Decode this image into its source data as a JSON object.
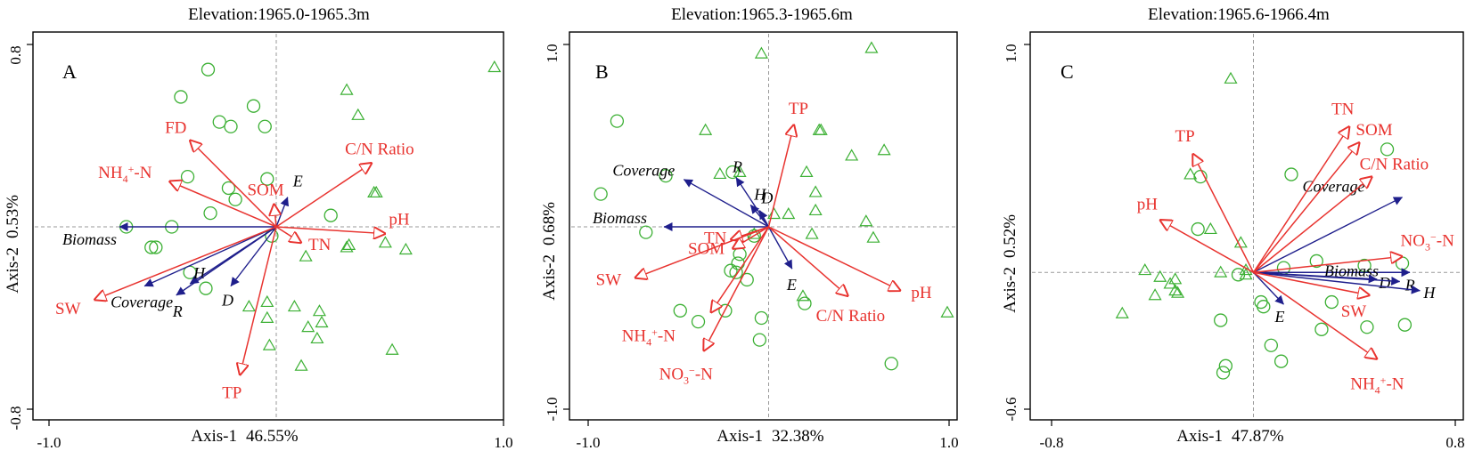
{
  "colors": {
    "env_arrow": "#e8332f",
    "veg_arrow": "#1f1f8c",
    "site_marker": "#3cb034"
  },
  "chart_data": [
    {
      "type": "biplot",
      "panel": "A",
      "title": "Elevation:1965.0-1965.3m",
      "xlabel_name": "Axis-1",
      "xlabel_pct": "46.55%",
      "ylabel_name": "Axis-2",
      "ylabel_pct": "0.53%",
      "xlim": [
        -1.0,
        1.0
      ],
      "ylim": [
        -0.8,
        0.8
      ],
      "xticks": [
        -1.0,
        1.0
      ],
      "yticks": [
        -0.8,
        0.8
      ],
      "xtick_labels": [
        "-1.0",
        "1.0"
      ],
      "ytick_labels": [
        "-0.8",
        "0.8"
      ],
      "env_arrows": [
        {
          "label": "FD",
          "x": -0.38,
          "y": 0.38
        },
        {
          "label": "NH4+-N",
          "parts": [
            {
              "t": "NH"
            },
            {
              "t": "4",
              "sup": false,
              "sub": true
            },
            {
              "t": "+",
              "sup": true
            },
            {
              "t": "-N"
            }
          ],
          "x": -0.47,
          "y": 0.2
        },
        {
          "label": "SOM",
          "x": -0.01,
          "y": 0.1
        },
        {
          "label": "C/N Ratio",
          "x": 0.42,
          "y": 0.28
        },
        {
          "label": "pH",
          "x": 0.48,
          "y": -0.03
        },
        {
          "label": "TN",
          "x": 0.11,
          "y": -0.07
        },
        {
          "label": "SW",
          "x": -0.8,
          "y": -0.32
        },
        {
          "label": "TP",
          "x": -0.16,
          "y": -0.65
        }
      ],
      "veg_arrows": [
        {
          "label": "Biomass",
          "x": -0.69,
          "y": 0.0
        },
        {
          "label": "E",
          "x": 0.05,
          "y": 0.13
        },
        {
          "label": "H",
          "x": -0.38,
          "y": -0.25
        },
        {
          "label": "Coverage",
          "x": -0.58,
          "y": -0.26
        },
        {
          "label": "R",
          "x": -0.44,
          "y": -0.3
        },
        {
          "label": "D",
          "x": -0.2,
          "y": -0.26
        }
      ],
      "circles": [
        [
          -0.3,
          0.69
        ],
        [
          -0.42,
          0.57
        ],
        [
          -0.1,
          0.53
        ],
        [
          -0.25,
          0.46
        ],
        [
          -0.2,
          0.44
        ],
        [
          -0.05,
          0.44
        ],
        [
          -0.39,
          0.22
        ],
        [
          -0.21,
          0.17
        ],
        [
          -0.18,
          0.12
        ],
        [
          -0.29,
          0.06
        ],
        [
          -0.46,
          0.0
        ],
        [
          -0.66,
          0.0
        ],
        [
          -0.53,
          -0.09
        ],
        [
          -0.55,
          -0.09
        ],
        [
          0.24,
          0.05
        ],
        [
          -0.38,
          -0.2
        ],
        [
          -0.31,
          -0.27
        ],
        [
          -0.04,
          0.21
        ],
        [
          -0.02,
          -0.04
        ]
      ],
      "triangles": [
        [
          0.96,
          0.7
        ],
        [
          0.31,
          0.6
        ],
        [
          0.36,
          0.49
        ],
        [
          0.43,
          0.15
        ],
        [
          0.44,
          0.15
        ],
        [
          0.48,
          -0.07
        ],
        [
          0.57,
          -0.1
        ],
        [
          0.13,
          -0.13
        ],
        [
          0.31,
          -0.09
        ],
        [
          0.32,
          -0.08
        ],
        [
          -0.12,
          -0.35
        ],
        [
          -0.04,
          -0.33
        ],
        [
          0.08,
          -0.35
        ],
        [
          0.19,
          -0.37
        ],
        [
          0.2,
          -0.42
        ],
        [
          -0.04,
          -0.4
        ],
        [
          0.14,
          -0.44
        ],
        [
          0.18,
          -0.49
        ],
        [
          -0.03,
          -0.52
        ],
        [
          0.51,
          -0.54
        ],
        [
          0.11,
          -0.61
        ]
      ]
    },
    {
      "type": "biplot",
      "panel": "B",
      "title": "Elevation:1965.3-1965.6m",
      "xlabel_name": "Axis-1",
      "xlabel_pct": "32.38%",
      "ylabel_name": "Axis-2",
      "ylabel_pct": "0.68%",
      "xlim": [
        -1.0,
        1.0
      ],
      "ylim": [
        -1.0,
        1.0
      ],
      "xticks": [
        -1.0,
        1.0
      ],
      "yticks": [
        -1.0,
        1.0
      ],
      "xtick_labels": [
        "-1.0",
        "1.0"
      ],
      "ytick_labels": [
        "-1.0",
        "1.0"
      ],
      "env_arrows": [
        {
          "label": "TP",
          "x": 0.14,
          "y": 0.56
        },
        {
          "label": "TN",
          "x": -0.21,
          "y": -0.07
        },
        {
          "label": "SOM",
          "x": -0.2,
          "y": -0.12
        },
        {
          "label": "SW",
          "x": -0.74,
          "y": -0.28
        },
        {
          "label": "NH4+-N",
          "parts": [
            {
              "t": "NH"
            },
            {
              "t": "4",
              "sub": true
            },
            {
              "t": "+",
              "sup": true
            },
            {
              "t": "-N"
            }
          ],
          "x": -0.32,
          "y": -0.47
        },
        {
          "label": "NO3−-N",
          "parts": [
            {
              "t": "NO"
            },
            {
              "t": "3",
              "sub": true
            },
            {
              "t": "−",
              "sup": true
            },
            {
              "t": "-N"
            }
          ],
          "x": -0.36,
          "y": -0.68
        },
        {
          "label": "C/N Ratio",
          "x": 0.44,
          "y": -0.38
        },
        {
          "label": "pH",
          "x": 0.73,
          "y": -0.35
        }
      ],
      "veg_arrows": [
        {
          "label": "R",
          "x": -0.18,
          "y": 0.27
        },
        {
          "label": "H",
          "x": -0.1,
          "y": 0.12
        },
        {
          "label": "D",
          "x": -0.05,
          "y": 0.09
        },
        {
          "label": "Coverage",
          "x": -0.47,
          "y": 0.26
        },
        {
          "label": "Biomass",
          "x": -0.58,
          "y": 0.0
        },
        {
          "label": "E",
          "x": 0.13,
          "y": -0.23
        }
      ],
      "circles": [
        [
          -0.84,
          0.58
        ],
        [
          -0.57,
          0.28
        ],
        [
          -0.93,
          0.18
        ],
        [
          -0.68,
          -0.03
        ],
        [
          -0.08,
          -0.05
        ],
        [
          -0.16,
          -0.15
        ],
        [
          -0.17,
          -0.2
        ],
        [
          -0.21,
          -0.24
        ],
        [
          -0.18,
          -0.25
        ],
        [
          -0.12,
          -0.29
        ],
        [
          -0.49,
          -0.46
        ],
        [
          -0.39,
          -0.52
        ],
        [
          -0.24,
          -0.46
        ],
        [
          -0.04,
          -0.5
        ],
        [
          -0.05,
          -0.62
        ],
        [
          0.68,
          -0.75
        ],
        [
          0.2,
          -0.42
        ],
        [
          -0.2,
          0.3
        ]
      ],
      "triangles": [
        [
          -0.04,
          0.95
        ],
        [
          0.57,
          0.98
        ],
        [
          -0.35,
          0.53
        ],
        [
          0.28,
          0.53
        ],
        [
          0.29,
          0.53
        ],
        [
          0.46,
          0.39
        ],
        [
          0.64,
          0.42
        ],
        [
          -0.27,
          0.29
        ],
        [
          -0.16,
          0.3
        ],
        [
          0.21,
          0.3
        ],
        [
          0.26,
          0.19
        ],
        [
          0.26,
          0.09
        ],
        [
          0.11,
          0.07
        ],
        [
          0.03,
          0.07
        ],
        [
          0.24,
          -0.04
        ],
        [
          0.54,
          0.03
        ],
        [
          0.58,
          -0.06
        ],
        [
          0.19,
          -0.38
        ],
        [
          -0.08,
          -0.04
        ],
        [
          0.99,
          -0.47
        ]
      ]
    },
    {
      "type": "biplot",
      "panel": "C",
      "title": "Elevation:1965.6-1966.4m",
      "xlabel_name": "Axis-1",
      "xlabel_pct": "47.87%",
      "ylabel_name": "Axis-2",
      "ylabel_pct": "0.52%",
      "xlim": [
        -0.8,
        0.8
      ],
      "ylim": [
        -0.6,
        1.0
      ],
      "xticks": [
        -0.8,
        0.8
      ],
      "yticks": [
        -0.6,
        1.0
      ],
      "xtick_labels": [
        "-0.8",
        "0.8"
      ],
      "ytick_labels": [
        "-0.6",
        "1.0"
      ],
      "env_arrows": [
        {
          "label": "TN",
          "x": 0.38,
          "y": 0.64
        },
        {
          "label": "SOM",
          "x": 0.42,
          "y": 0.57
        },
        {
          "label": "TP",
          "x": -0.24,
          "y": 0.52
        },
        {
          "label": "C/N Ratio",
          "x": 0.47,
          "y": 0.42
        },
        {
          "label": "pH",
          "x": -0.37,
          "y": 0.23
        },
        {
          "label": "NO3−-N",
          "parts": [
            {
              "t": "NO"
            },
            {
              "t": "3",
              "sub": true
            },
            {
              "t": "−",
              "sup": true
            },
            {
              "t": "-N"
            }
          ],
          "x": 0.59,
          "y": 0.07
        },
        {
          "label": "SW",
          "x": 0.46,
          "y": -0.1
        },
        {
          "label": "NH4+-N",
          "parts": [
            {
              "t": "NH"
            },
            {
              "t": "4",
              "sub": true
            },
            {
              "t": "+",
              "sup": true
            },
            {
              "t": "-N"
            }
          ],
          "x": 0.49,
          "y": -0.38
        }
      ],
      "veg_arrows": [
        {
          "label": "Coverage",
          "x": 0.59,
          "y": 0.33
        },
        {
          "label": "Biomass",
          "x": 0.62,
          "y": 0.0
        },
        {
          "label": "D",
          "x": 0.49,
          "y": -0.03
        },
        {
          "label": "R",
          "x": 0.58,
          "y": -0.04
        },
        {
          "label": "H",
          "x": 0.66,
          "y": -0.08
        },
        {
          "label": "E",
          "x": 0.12,
          "y": -0.14
        }
      ],
      "circles": [
        [
          0.53,
          0.54
        ],
        [
          0.15,
          0.43
        ],
        [
          -0.21,
          0.42
        ],
        [
          -0.22,
          0.19
        ],
        [
          0.12,
          0.02
        ],
        [
          0.25,
          0.05
        ],
        [
          0.44,
          0.03
        ],
        [
          0.59,
          0.04
        ],
        [
          -0.06,
          -0.01
        ],
        [
          0.31,
          -0.13
        ],
        [
          0.03,
          -0.13
        ],
        [
          0.04,
          -0.15
        ],
        [
          -0.13,
          -0.21
        ],
        [
          0.27,
          -0.25
        ],
        [
          0.45,
          -0.24
        ],
        [
          0.6,
          -0.23
        ],
        [
          0.07,
          -0.32
        ],
        [
          0.11,
          -0.39
        ],
        [
          -0.11,
          -0.41
        ],
        [
          -0.12,
          -0.44
        ]
      ],
      "triangles": [
        [
          -0.09,
          0.85
        ],
        [
          -0.25,
          0.43
        ],
        [
          -0.17,
          0.19
        ],
        [
          -0.05,
          0.13
        ],
        [
          -0.43,
          0.01
        ],
        [
          -0.37,
          -0.02
        ],
        [
          -0.31,
          -0.03
        ],
        [
          -0.33,
          -0.05
        ],
        [
          -0.03,
          0.01
        ],
        [
          -0.03,
          -0.01
        ],
        [
          -0.39,
          -0.1
        ],
        [
          -0.31,
          -0.08
        ],
        [
          -0.52,
          -0.18
        ],
        [
          -0.13,
          0.0
        ],
        [
          -0.3,
          -0.09
        ]
      ]
    }
  ]
}
